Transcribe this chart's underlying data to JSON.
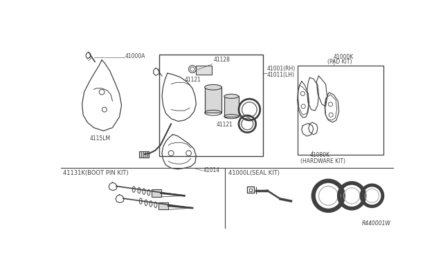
{
  "bg_color": "#ffffff",
  "fig_width": 6.4,
  "fig_height": 3.72,
  "dpi": 100,
  "labels": {
    "part_41000A": "41000A",
    "part_4115LM": "4115LM",
    "part_41128": "41128",
    "part_41121_top": "41121",
    "part_41121_bot": "41121",
    "part_41001": "41001(RH)",
    "part_41011": "41011(LH)",
    "part_41000K": "41000K",
    "pad_kit": "(PAD KIT)",
    "part_41014": "41014",
    "part_4080K": "41080K",
    "hw_kit": "(HARDWARE KIT)",
    "boot_pin_kit": "41131K(BOOT PIN KIT)",
    "seal_kit": "41000L(SEAL KIT)",
    "ref": "R440001W"
  },
  "font_size": 5.5,
  "line_color": "#404040",
  "line_color2": "#555555"
}
